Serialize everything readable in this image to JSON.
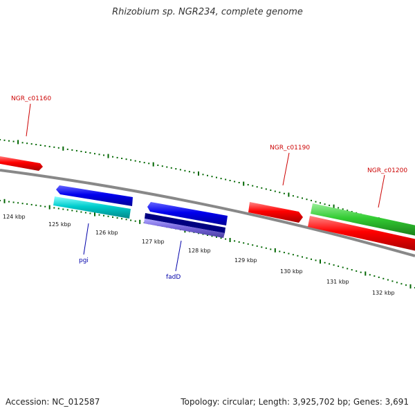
{
  "title": "Rhizobium sp. NGR234, complete genome",
  "footer": {
    "accession": "Accession: NC_012587",
    "topology": "Topology: circular; Length: 3,925,702 bp; Genes: 3,691"
  },
  "ruler": {
    "labels": [
      "124 kbp",
      "125 kbp",
      "126 kbp",
      "127 kbp",
      "128 kbp",
      "129 kbp",
      "130 kbp",
      "131 kbp",
      "132 kbp"
    ]
  },
  "genes": [
    {
      "name": "NGR_c01160",
      "label": "NGR_c01160",
      "color": "#cc0000"
    },
    {
      "name": "NGR_c01190",
      "label": "NGR_c01190",
      "color": "#cc0000"
    },
    {
      "name": "NGR_c01200",
      "label": "NGR_c01200",
      "color": "#cc0000"
    },
    {
      "name": "pgi",
      "label": "pgi",
      "color": "#0000aa"
    },
    {
      "name": "fadD",
      "label": "fadD",
      "color": "#0000aa"
    }
  ],
  "colors": {
    "red_gene": "#ff0000",
    "green_gene": "#33cc33",
    "blue_gene": "#0000ee",
    "cyan_gene": "#00cccc",
    "navy_gene": "#000080",
    "purple_gene": "#7766dd",
    "backbone": "#888888",
    "tick": "#006600"
  }
}
